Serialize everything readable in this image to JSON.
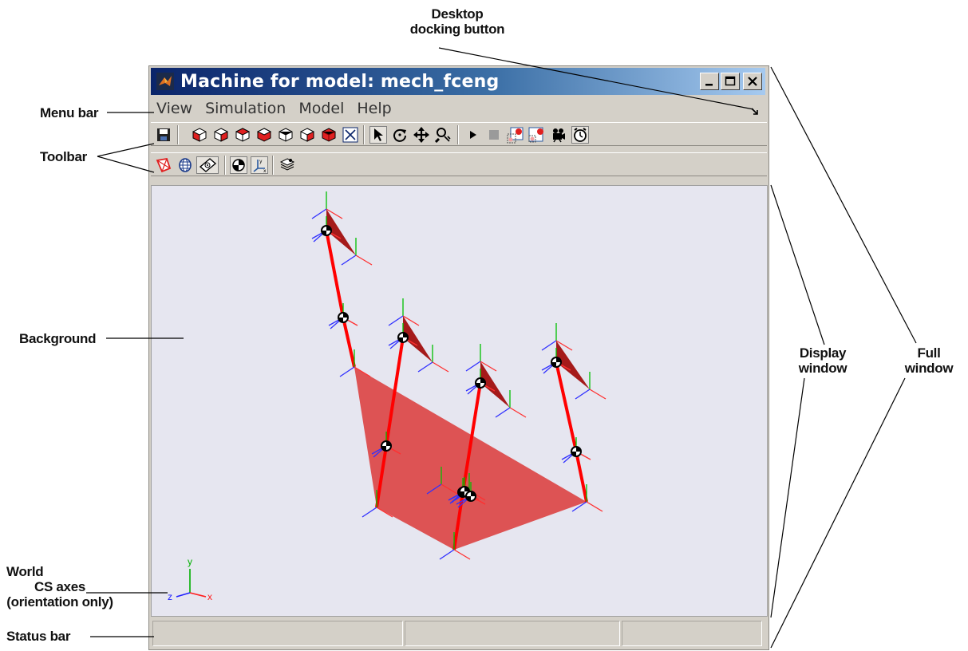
{
  "annotations": {
    "docking_line1": "Desktop",
    "docking_line2": "docking button",
    "menu_bar": "Menu bar",
    "toolbar": "Toolbar",
    "background": "Background",
    "display_line1": "Display",
    "display_line2": "window",
    "full_line1": "Full",
    "full_line2": "window",
    "world_line1": "World",
    "world_line2": "CS axes",
    "world_line3": "(orientation only)",
    "status_bar": "Status bar"
  },
  "window": {
    "title": "Machine for model: mech_fceng",
    "controls": [
      "minimize-icon",
      "maximize-icon",
      "close-icon"
    ]
  },
  "menu": [
    "View",
    "Simulation",
    "Model",
    "Help"
  ],
  "toolbar1": [
    "save-icon",
    "view-front-icon",
    "view-back-icon",
    "view-left-icon",
    "view-right-icon",
    "view-top-icon",
    "view-bottom-icon",
    "view-isometric-icon",
    "fit-to-view-icon",
    "select-pointer-icon",
    "rotate-icon",
    "pan-icon",
    "zoom-icon",
    "play-icon",
    "stop-icon",
    "record-start-icon",
    "record-stop-icon",
    "camera-icon",
    "timer-icon"
  ],
  "toolbar2": [
    "convex-hull-icon",
    "ellipsoid-icon",
    "body-cs-icon",
    "center-of-gravity-icon",
    "world-axes-icon",
    "layers-icon"
  ],
  "world_axes": {
    "x": "x",
    "y": "y",
    "z": "z"
  },
  "colors": {
    "body_red": "#ff0000",
    "plate_red": "#dc4646",
    "triangle_dark": "#a51a1a",
    "axis_x": "#ff3030",
    "axis_y": "#00c000",
    "axis_z": "#3030ff",
    "display_bg": "#e6e6f0"
  }
}
